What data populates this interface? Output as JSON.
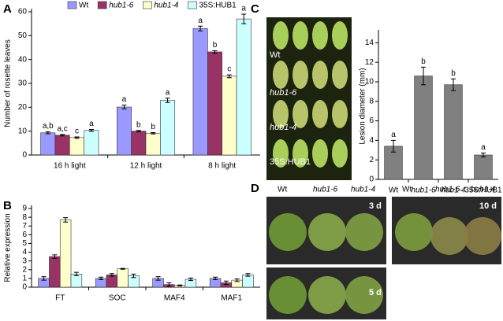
{
  "chart_data": [
    {
      "type": "grouped-bar",
      "panel": "A",
      "ylabel": "Number of rosette leaves",
      "categories": [
        "16 h light",
        "12 h light",
        "8 h light"
      ],
      "series": [
        {
          "name": "Wt",
          "color": "#9999ff",
          "values": [
            9.3,
            20.1,
            53
          ],
          "errors": [
            0.4,
            0.8,
            1.0
          ],
          "letters": [
            "a,b",
            "a",
            "a"
          ]
        },
        {
          "name": "hub1-6",
          "color": "#993366",
          "values": [
            8.3,
            10.0,
            43.2
          ],
          "errors": [
            0.3,
            0.3,
            0.5
          ],
          "letters": [
            "a,c",
            "b",
            "b"
          ]
        },
        {
          "name": "hub1-4",
          "color": "#ffffcc",
          "values": [
            7.3,
            9.1,
            33
          ],
          "errors": [
            0.3,
            0.3,
            0.6
          ],
          "letters": [
            "c",
            "b",
            "c"
          ]
        },
        {
          "name": "35S:HUB1",
          "color": "#ccffff",
          "values": [
            10.3,
            22.9,
            57
          ],
          "errors": [
            0.4,
            0.9,
            2.0
          ],
          "letters": [
            "a",
            "a",
            "a"
          ]
        }
      ],
      "ylim": [
        0,
        60
      ],
      "yticks": [
        0,
        10,
        20,
        30,
        40,
        50,
        60
      ],
      "legend": "top"
    },
    {
      "type": "grouped-bar",
      "panel": "B",
      "ylabel": "Relative expression",
      "categories": [
        "FT",
        "SOC",
        "MAF4",
        "MAF1"
      ],
      "series": [
        {
          "color": "#9999ff",
          "values": [
            1.0,
            1.0,
            1.0,
            1.0
          ],
          "errors": [
            0.2,
            0.15,
            0.2,
            0.15
          ]
        },
        {
          "color": "#993366",
          "values": [
            3.5,
            1.4,
            0.3,
            0.5
          ],
          "errors": [
            0.2,
            0.15,
            0.2,
            0.2
          ]
        },
        {
          "color": "#ffffcc",
          "values": [
            7.7,
            2.1,
            0.2,
            0.8
          ],
          "errors": [
            0.25,
            0.05,
            0.05,
            0.15
          ]
        },
        {
          "color": "#ccffff",
          "values": [
            1.5,
            1.3,
            0.9,
            1.4
          ],
          "errors": [
            0.2,
            0.2,
            0.15,
            0.15
          ]
        }
      ],
      "ylim": [
        0,
        9
      ],
      "yticks": [
        0,
        1,
        2,
        3,
        4,
        5,
        6,
        7,
        8,
        9
      ]
    },
    {
      "type": "bar",
      "panel": "C",
      "ylabel": "Lesion diameter (mm)",
      "categories": [
        "Wt",
        "hub1-6",
        "hub1-4",
        "35S:HUB1"
      ],
      "values": [
        3.4,
        10.6,
        9.7,
        2.5
      ],
      "errors": [
        0.6,
        0.9,
        0.6,
        0.2
      ],
      "letters": [
        "a",
        "b",
        "b",
        "a"
      ],
      "color": "#808080",
      "ylim": [
        0,
        15
      ],
      "yticks": [
        0,
        2,
        4,
        6,
        8,
        10,
        12,
        14
      ]
    }
  ],
  "photos": {
    "panel_d": "D",
    "leaf_labels": [
      "Wt",
      "hub1-6",
      "hub1-4",
      "35S:HUB1"
    ],
    "d_top_left": [
      "Wt",
      "hub1-6",
      "hub1-4"
    ],
    "d_top_right": [
      "Wt",
      "hub1-6",
      "hub1-4"
    ],
    "d_days": [
      "3 d",
      "10 d",
      "5 d"
    ]
  }
}
